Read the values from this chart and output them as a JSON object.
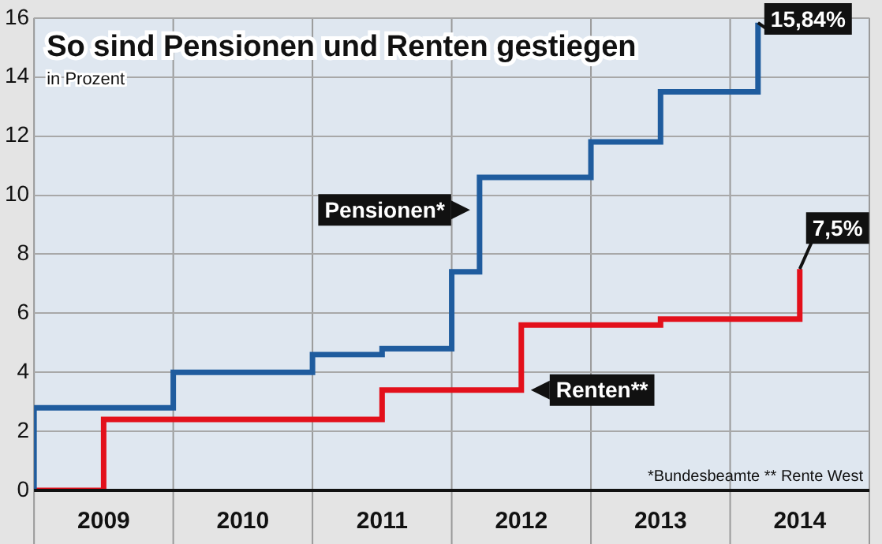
{
  "chart_data": {
    "type": "step",
    "title": "So sind Pensionen und Renten gestiegen",
    "subtitle": "in Prozent",
    "series": [
      {
        "name": "Pensionen*",
        "color": "#1f5c9e",
        "x": [
          2009,
          2009,
          2010,
          2011,
          2011.5,
          2012,
          2012.2,
          2013,
          2013.5,
          2014.2
        ],
        "values": [
          0,
          2.8,
          4.0,
          4.6,
          4.8,
          7.4,
          10.6,
          11.8,
          13.5,
          15.84
        ]
      },
      {
        "name": "Renten**",
        "color": "#e3101b",
        "x": [
          2009,
          2009.5,
          2011.5,
          2012.5,
          2013.5,
          2014.5
        ],
        "values": [
          0,
          2.4,
          3.4,
          5.6,
          5.8,
          7.5
        ]
      }
    ],
    "xlim": [
      2009,
      2015
    ],
    "xticks": [
      {
        "value": 2009.5,
        "label": "2009"
      },
      {
        "value": 2010.5,
        "label": "2010"
      },
      {
        "value": 2011.5,
        "label": "2011"
      },
      {
        "value": 2012.5,
        "label": "2012"
      },
      {
        "value": 2013.5,
        "label": "2013"
      },
      {
        "value": 2014.5,
        "label": "2014"
      }
    ],
    "ylim": [
      0,
      16
    ],
    "yticks": [
      0,
      2,
      4,
      6,
      8,
      10,
      12,
      14,
      16
    ],
    "grid": true,
    "legend": false,
    "annotations": [
      {
        "text": "15,84%",
        "x": 2014.2,
        "y": 15.84
      },
      {
        "text": "7,5%",
        "x": 2014.5,
        "y": 7.5
      },
      "*Bundesbeamte ** Rente West"
    ]
  }
}
